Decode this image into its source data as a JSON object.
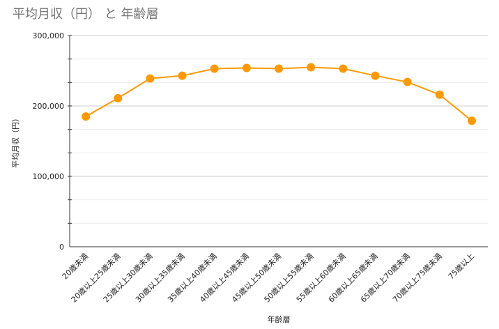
{
  "chart_data": {
    "type": "line",
    "title": "平均月収（円） と 年齢層",
    "xlabel": "年齢層",
    "ylabel": "平均月収（円）",
    "categories": [
      "20歳未満",
      "20歳以上25歳未満",
      "25歳以上30歳未満",
      "30歳以上35歳未満",
      "35歳以上40歳未満",
      "40歳以上45歳未満",
      "45歳以上50歳未満",
      "50歳以上55歳未満",
      "55歳以上60歳未満",
      "60歳以上65歳未満",
      "65歳以上70歳未満",
      "70歳以上75歳未満",
      "75歳以上"
    ],
    "series": [
      {
        "values": [
          185000,
          211000,
          239000,
          243000,
          253000,
          254000,
          253000,
          255000,
          253000,
          243000,
          234000,
          216000,
          179000
        ],
        "color": "#ff9900"
      }
    ],
    "ylim": [
      0,
      300000
    ],
    "yticks": [
      0,
      100000,
      200000,
      300000
    ],
    "ytick_labels": [
      "0",
      "100,000",
      "200,000",
      "300,000"
    ],
    "grid": true,
    "legend": "none"
  }
}
